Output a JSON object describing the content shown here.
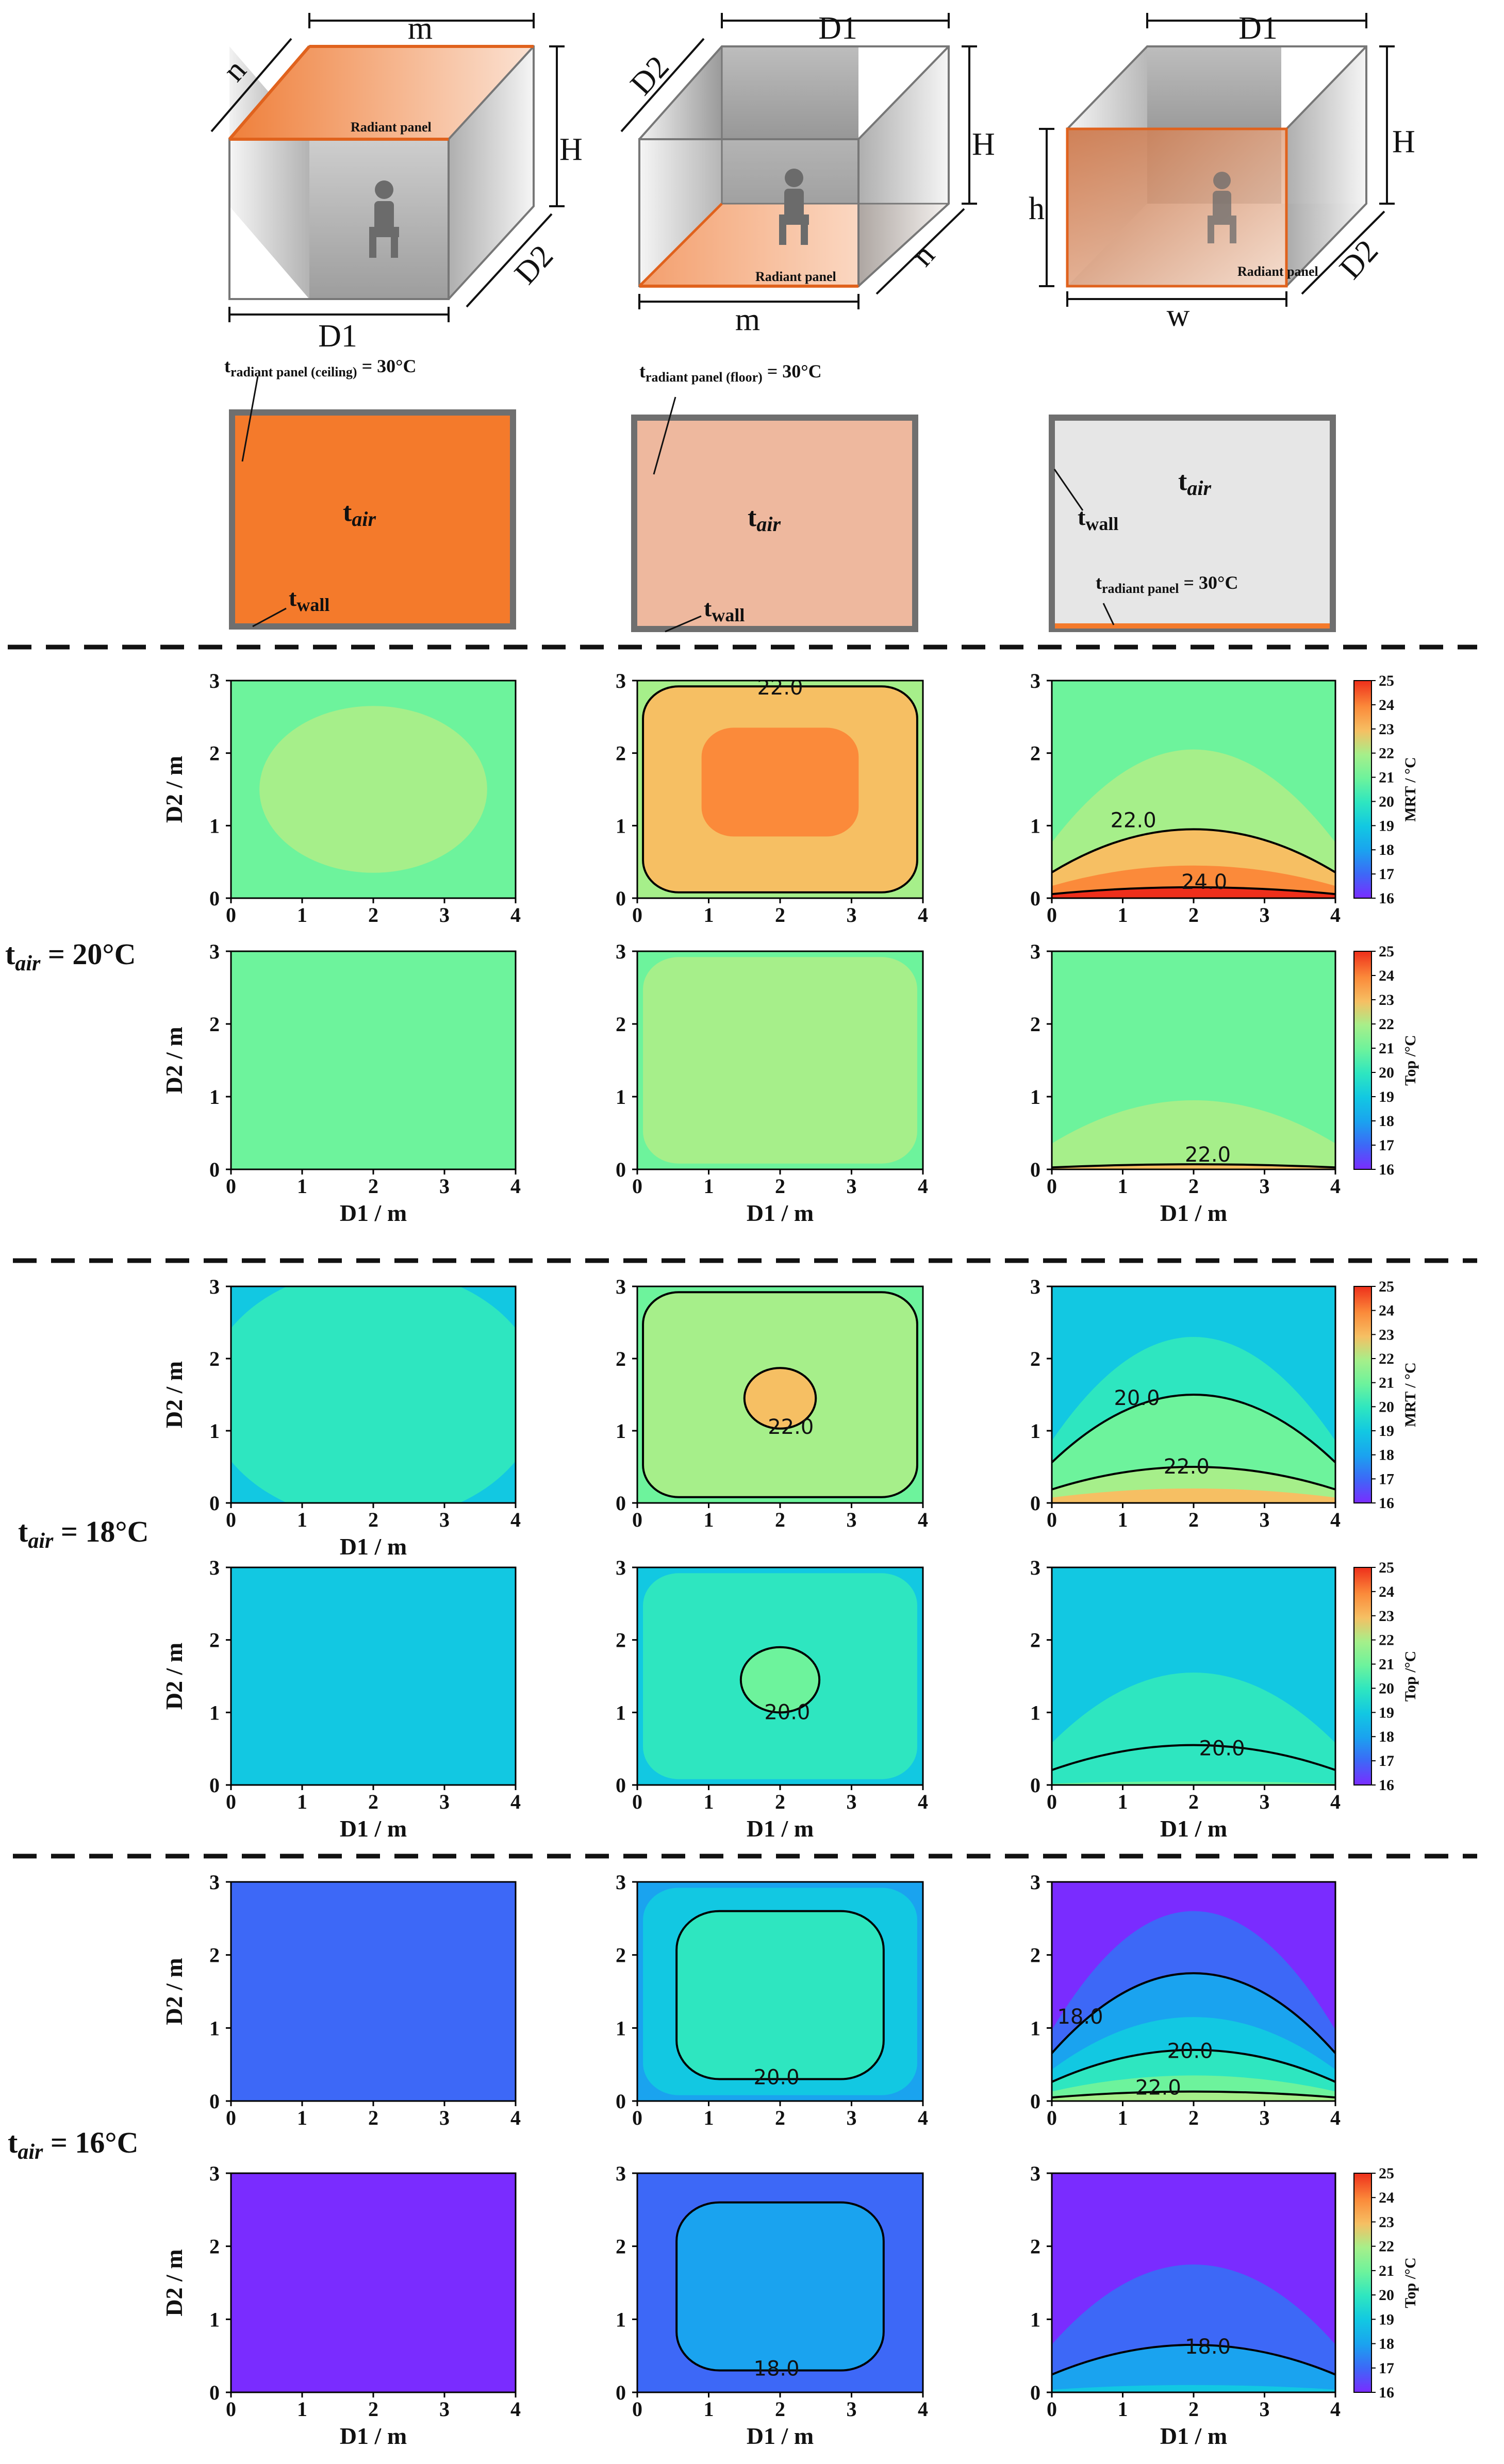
{
  "diagrams": {
    "cases": [
      {
        "name": "ceiling",
        "dims": {
          "top": "m",
          "depth": "n",
          "height": "H",
          "bottom": "D1",
          "side": "D2"
        },
        "panel_label": "Radiant panel",
        "section_panel_label": "t",
        "section_panel_sub": "radiant panel (ceiling)",
        "section_panel_value": " = 30°C",
        "tair_main": "t",
        "tair_sub": "air",
        "twall_main": "t",
        "twall_sub": "wall",
        "fill": "#f47a2b"
      },
      {
        "name": "floor",
        "dims": {
          "top": "D1",
          "depth": "D2",
          "height": "H",
          "bottom": "m",
          "side": "n"
        },
        "panel_label": "Radiant panel",
        "section_panel_label": "t",
        "section_panel_sub": "radiant panel (floor)",
        "section_panel_value": " = 30°C",
        "tair_main": "t",
        "tair_sub": "air",
        "twall_main": "t",
        "twall_sub": "wall",
        "fill": "#eeb89e"
      },
      {
        "name": "wall",
        "dims": {
          "top": "D1",
          "left": "h",
          "height": "H",
          "bottom": "w",
          "side": "D2"
        },
        "panel_label": "Radiant panel",
        "section_panel_label": "t",
        "section_panel_sub": "radiant panel",
        "section_panel_value": " = 30°C",
        "tair_main": "t",
        "tair_sub": "air",
        "twall_main": "t",
        "twall_sub": "wall",
        "fill": "#e6e6e6"
      }
    ]
  },
  "row_labels": [
    {
      "main": "t",
      "sub": "air",
      "value": " = 20°C"
    },
    {
      "main": "t",
      "sub": "air",
      "value": " = 18°C"
    },
    {
      "main": "t",
      "sub": "air",
      "value": " = 16°C"
    }
  ],
  "colorbars": [
    {
      "label": "MRT / °C",
      "ticks": [
        "16",
        "17",
        "18",
        "19",
        "20",
        "21",
        "22",
        "23",
        "24",
        "25"
      ]
    },
    {
      "label": "Top /°C",
      "ticks": [
        "16",
        "17",
        "18",
        "19",
        "20",
        "21",
        "22",
        "23",
        "24",
        "25"
      ]
    }
  ],
  "colormap": {
    "16": "#7a2cff",
    "17": "#3d68f7",
    "18": "#1aa3ef",
    "19": "#12c8e2",
    "20": "#2ee6c0",
    "21": "#6df39c",
    "22": "#a6ef8a",
    "23": "#f6bf63",
    "24": "#fb8a3a",
    "25": "#ee2f1b"
  },
  "chart_data": [
    {
      "type": "heatmap",
      "case": "ceiling",
      "tair": 20,
      "metric": "MRT",
      "xlabel": "",
      "ylabel": "D2 / m",
      "x_ticks": [
        "0",
        "1",
        "2",
        "3",
        "4"
      ],
      "y_ticks": [
        "0",
        "1",
        "2",
        "3"
      ],
      "xlim": [
        0,
        4
      ],
      "ylim": [
        0,
        3
      ],
      "background": 21,
      "regions": [
        {
          "shape": "ellipse",
          "cx": 2,
          "cy": 1.5,
          "rx": 1.6,
          "ry": 1.15,
          "level": 22
        }
      ],
      "contours": []
    },
    {
      "type": "heatmap",
      "case": "floor",
      "tair": 20,
      "metric": "MRT",
      "xlabel": "",
      "ylabel": "",
      "x_ticks": [
        "0",
        "1",
        "2",
        "3",
        "4"
      ],
      "y_ticks": [
        "0",
        "1",
        "2",
        "3"
      ],
      "xlim": [
        0,
        4
      ],
      "ylim": [
        0,
        3
      ],
      "background": 22,
      "regions": [
        {
          "shape": "rrect",
          "x0": 0.08,
          "x1": 3.92,
          "y0": 0.08,
          "y1": 2.92,
          "r": 0.5,
          "level": 23
        },
        {
          "shape": "rrect",
          "x0": 0.9,
          "x1": 3.1,
          "y0": 0.85,
          "y1": 2.35,
          "r": 0.45,
          "level": 24
        }
      ],
      "contours": [
        {
          "shape": "rrect",
          "x0": 0.08,
          "x1": 3.92,
          "y0": 0.08,
          "y1": 2.92,
          "r": 0.5,
          "label": "22.0",
          "lx": 2,
          "ly": 2.9
        }
      ]
    },
    {
      "type": "heatmap",
      "case": "wall",
      "tair": 20,
      "metric": "MRT",
      "xlabel": "",
      "ylabel": "",
      "x_ticks": [
        "0",
        "1",
        "2",
        "3",
        "4"
      ],
      "y_ticks": [
        "0",
        "1",
        "2",
        "3"
      ],
      "xlim": [
        0,
        4
      ],
      "ylim": [
        0,
        3
      ],
      "background": 21,
      "regions": [
        {
          "shape": "dome",
          "h": 2.05,
          "level": 22
        },
        {
          "shape": "dome",
          "h": 0.95,
          "level": 23
        },
        {
          "shape": "dome",
          "h": 0.45,
          "level": 24
        },
        {
          "shape": "dome",
          "h": 0.15,
          "level": 25
        }
      ],
      "contours": [
        {
          "shape": "dome",
          "h": 0.95,
          "label": "22.0",
          "lx": 1.15,
          "ly": 1.07
        },
        {
          "shape": "dome",
          "h": 0.15,
          "label": "24.0",
          "lx": 2.15,
          "ly": 0.22
        }
      ],
      "colorbar": 0
    },
    {
      "type": "heatmap",
      "case": "ceiling",
      "tair": 20,
      "metric": "Top",
      "xlabel": "D1 / m",
      "ylabel": "D2 / m",
      "x_ticks": [
        "0",
        "1",
        "2",
        "3",
        "4"
      ],
      "y_ticks": [
        "0",
        "1",
        "2",
        "3"
      ],
      "xlim": [
        0,
        4
      ],
      "ylim": [
        0,
        3
      ],
      "background": 21,
      "regions": [],
      "contours": []
    },
    {
      "type": "heatmap",
      "case": "floor",
      "tair": 20,
      "metric": "Top",
      "xlabel": "D1 / m",
      "ylabel": "",
      "x_ticks": [
        "0",
        "1",
        "2",
        "3",
        "4"
      ],
      "y_ticks": [
        "0",
        "1",
        "2",
        "3"
      ],
      "xlim": [
        0,
        4
      ],
      "ylim": [
        0,
        3
      ],
      "background": 21,
      "regions": [
        {
          "shape": "rrect",
          "x0": 0.08,
          "x1": 3.92,
          "y0": 0.08,
          "y1": 2.92,
          "r": 0.5,
          "level": 22
        }
      ],
      "contours": []
    },
    {
      "type": "heatmap",
      "case": "wall",
      "tair": 20,
      "metric": "Top",
      "xlabel": "D1 / m",
      "ylabel": "",
      "x_ticks": [
        "0",
        "1",
        "2",
        "3",
        "4"
      ],
      "y_ticks": [
        "0",
        "1",
        "2",
        "3"
      ],
      "xlim": [
        0,
        4
      ],
      "ylim": [
        0,
        3
      ],
      "background": 21,
      "regions": [
        {
          "shape": "dome",
          "h": 0.95,
          "level": 22
        },
        {
          "shape": "dome",
          "h": 0.07,
          "level": 23
        }
      ],
      "contours": [
        {
          "shape": "dome",
          "h": 0.07,
          "label": "22.0",
          "lx": 2.2,
          "ly": 0.2
        }
      ],
      "colorbar": 1
    },
    {
      "type": "heatmap",
      "case": "ceiling",
      "tair": 18,
      "metric": "MRT",
      "xlabel": "D1 / m",
      "ylabel": "D2 / m",
      "x_ticks": [
        "0",
        "1",
        "2",
        "3",
        "4"
      ],
      "y_ticks": [
        "0",
        "1",
        "2",
        "3"
      ],
      "xlim": [
        0,
        4
      ],
      "ylim": [
        0,
        3
      ],
      "background": 19,
      "regions": [
        {
          "shape": "ellipse",
          "cx": 2,
          "cy": 1.5,
          "rx": 2.35,
          "ry": 1.75,
          "level": 20
        }
      ],
      "contours": []
    },
    {
      "type": "heatmap",
      "case": "floor",
      "tair": 18,
      "metric": "MRT",
      "xlabel": "",
      "ylabel": "",
      "x_ticks": [
        "0",
        "1",
        "2",
        "3",
        "4"
      ],
      "y_ticks": [
        "0",
        "1",
        "2",
        "3"
      ],
      "xlim": [
        0,
        4
      ],
      "ylim": [
        0,
        3
      ],
      "background": 21,
      "regions": [
        {
          "shape": "rrect",
          "x0": 0.08,
          "x1": 3.92,
          "y0": 0.08,
          "y1": 2.92,
          "r": 0.5,
          "level": 22
        },
        {
          "shape": "rrect",
          "x0": 0.6,
          "x1": 3.4,
          "y0": 0.35,
          "y1": 2.65,
          "r": 0.5,
          "level": 22
        },
        {
          "shape": "ellipse",
          "cx": 2,
          "cy": 1.45,
          "rx": 0.5,
          "ry": 0.42,
          "level": 23
        }
      ],
      "contours": [
        {
          "shape": "rrect",
          "x0": 0.08,
          "x1": 3.92,
          "y0": 0.08,
          "y1": 2.92,
          "r": 0.5,
          "label": "",
          "lx": 0,
          "ly": 0
        },
        {
          "shape": "ellipse",
          "cx": 2,
          "cy": 1.45,
          "rx": 0.5,
          "ry": 0.42,
          "label": "22.0",
          "lx": 2.15,
          "ly": 1.05
        }
      ]
    },
    {
      "type": "heatmap",
      "case": "wall",
      "tair": 18,
      "metric": "MRT",
      "xlabel": "",
      "ylabel": "",
      "x_ticks": [
        "0",
        "1",
        "2",
        "3",
        "4"
      ],
      "y_ticks": [
        "0",
        "1",
        "2",
        "3"
      ],
      "xlim": [
        0,
        4
      ],
      "ylim": [
        0,
        3
      ],
      "background": 19,
      "regions": [
        {
          "shape": "dome",
          "h": 2.3,
          "level": 20
        },
        {
          "shape": "dome",
          "h": 1.5,
          "level": 21
        },
        {
          "shape": "dome",
          "h": 0.5,
          "level": 22
        },
        {
          "shape": "dome",
          "h": 0.2,
          "level": 23
        }
      ],
      "contours": [
        {
          "shape": "dome",
          "h": 1.5,
          "label": "20.0",
          "lx": 1.2,
          "ly": 1.45
        },
        {
          "shape": "dome",
          "h": 0.5,
          "label": "22.0",
          "lx": 1.9,
          "ly": 0.5
        }
      ],
      "colorbar": 0
    },
    {
      "type": "heatmap",
      "case": "ceiling",
      "tair": 18,
      "metric": "Top",
      "xlabel": "D1 / m",
      "ylabel": "D2 / m",
      "x_ticks": [
        "0",
        "1",
        "2",
        "3",
        "4"
      ],
      "y_ticks": [
        "0",
        "1",
        "2",
        "3"
      ],
      "xlim": [
        0,
        4
      ],
      "ylim": [
        0,
        3
      ],
      "background": 19,
      "regions": [],
      "contours": []
    },
    {
      "type": "heatmap",
      "case": "floor",
      "tair": 18,
      "metric": "Top",
      "xlabel": "D1 / m",
      "ylabel": "",
      "x_ticks": [
        "0",
        "1",
        "2",
        "3",
        "4"
      ],
      "y_ticks": [
        "0",
        "1",
        "2",
        "3"
      ],
      "xlim": [
        0,
        4
      ],
      "ylim": [
        0,
        3
      ],
      "background": 19,
      "regions": [
        {
          "shape": "rrect",
          "x0": 0.08,
          "x1": 3.92,
          "y0": 0.08,
          "y1": 2.92,
          "r": 0.5,
          "level": 20
        },
        {
          "shape": "ellipse",
          "cx": 2,
          "cy": 1.45,
          "rx": 0.55,
          "ry": 0.45,
          "level": 21
        }
      ],
      "contours": [
        {
          "shape": "ellipse",
          "cx": 2,
          "cy": 1.45,
          "rx": 0.55,
          "ry": 0.45,
          "label": "20.0",
          "lx": 2.1,
          "ly": 1.0
        }
      ]
    },
    {
      "type": "heatmap",
      "case": "wall",
      "tair": 18,
      "metric": "Top",
      "xlabel": "D1 / m",
      "ylabel": "",
      "x_ticks": [
        "0",
        "1",
        "2",
        "3",
        "4"
      ],
      "y_ticks": [
        "0",
        "1",
        "2",
        "3"
      ],
      "xlim": [
        0,
        4
      ],
      "ylim": [
        0,
        3
      ],
      "background": 19,
      "regions": [
        {
          "shape": "dome",
          "h": 1.55,
          "level": 20
        },
        {
          "shape": "dome",
          "h": 0.55,
          "level": 20.5
        },
        {
          "shape": "dome",
          "h": 0.05,
          "level": 21
        }
      ],
      "contours": [
        {
          "shape": "dome",
          "h": 0.55,
          "label": "20.0",
          "lx": 2.4,
          "ly": 0.5
        }
      ],
      "colorbar": 1
    },
    {
      "type": "heatmap",
      "case": "ceiling",
      "tair": 16,
      "metric": "MRT",
      "xlabel": "",
      "ylabel": "D2 / m",
      "x_ticks": [
        "0",
        "1",
        "2",
        "3",
        "4"
      ],
      "y_ticks": [
        "0",
        "1",
        "2",
        "3"
      ],
      "xlim": [
        0,
        4
      ],
      "ylim": [
        0,
        3
      ],
      "background": 17,
      "regions": [],
      "contours": []
    },
    {
      "type": "heatmap",
      "case": "floor",
      "tair": 16,
      "metric": "MRT",
      "xlabel": "",
      "ylabel": "",
      "x_ticks": [
        "0",
        "1",
        "2",
        "3",
        "4"
      ],
      "y_ticks": [
        "0",
        "1",
        "2",
        "3"
      ],
      "xlim": [
        0,
        4
      ],
      "ylim": [
        0,
        3
      ],
      "background": 18,
      "regions": [
        {
          "shape": "rrect",
          "x0": 0.08,
          "x1": 3.92,
          "y0": 0.08,
          "y1": 2.92,
          "r": 0.5,
          "level": 19
        },
        {
          "shape": "rrect",
          "x0": 0.55,
          "x1": 3.45,
          "y0": 0.3,
          "y1": 2.6,
          "r": 0.6,
          "level": 20
        }
      ],
      "contours": [
        {
          "shape": "rrect",
          "x0": 0.55,
          "x1": 3.45,
          "y0": 0.3,
          "y1": 2.6,
          "r": 0.6,
          "label": "20.0",
          "lx": 1.95,
          "ly": 0.32
        }
      ]
    },
    {
      "type": "heatmap",
      "case": "wall",
      "tair": 16,
      "metric": "MRT",
      "xlabel": "",
      "ylabel": "",
      "x_ticks": [
        "0",
        "1",
        "2",
        "3",
        "4"
      ],
      "y_ticks": [
        "0",
        "1",
        "2",
        "3"
      ],
      "xlim": [
        0,
        4
      ],
      "ylim": [
        0,
        3
      ],
      "background": 16,
      "regions": [
        {
          "shape": "dome",
          "h": 2.6,
          "level": 17
        },
        {
          "shape": "dome",
          "h": 1.75,
          "level": 18
        },
        {
          "shape": "dome",
          "h": 1.15,
          "level": 19
        },
        {
          "shape": "dome",
          "h": 0.7,
          "level": 20
        },
        {
          "shape": "dome",
          "h": 0.35,
          "level": 21
        },
        {
          "shape": "dome",
          "h": 0.13,
          "level": 22
        }
      ],
      "contours": [
        {
          "shape": "dome",
          "h": 1.75,
          "label": "18.0",
          "lx": 0.4,
          "ly": 1.15
        },
        {
          "shape": "dome",
          "h": 0.7,
          "label": "20.0",
          "lx": 1.95,
          "ly": 0.68
        },
        {
          "shape": "dome",
          "h": 0.13,
          "label": "22.0",
          "lx": 1.5,
          "ly": 0.18
        }
      ]
    },
    {
      "type": "heatmap",
      "case": "ceiling",
      "tair": 16,
      "metric": "Top",
      "xlabel": "D1 / m",
      "ylabel": "D2 / m",
      "x_ticks": [
        "0",
        "1",
        "2",
        "3",
        "4"
      ],
      "y_ticks": [
        "0",
        "1",
        "2",
        "3"
      ],
      "xlim": [
        0,
        4
      ],
      "ylim": [
        0,
        3
      ],
      "background": 16,
      "regions": [],
      "contours": []
    },
    {
      "type": "heatmap",
      "case": "floor",
      "tair": 16,
      "metric": "Top",
      "xlabel": "D1 / m",
      "ylabel": "",
      "x_ticks": [
        "0",
        "1",
        "2",
        "3",
        "4"
      ],
      "y_ticks": [
        "0",
        "1",
        "2",
        "3"
      ],
      "xlim": [
        0,
        4
      ],
      "ylim": [
        0,
        3
      ],
      "background": 17,
      "regions": [
        {
          "shape": "rrect",
          "x0": 0.55,
          "x1": 3.45,
          "y0": 0.3,
          "y1": 2.6,
          "r": 0.6,
          "level": 18
        }
      ],
      "contours": [
        {
          "shape": "rrect",
          "x0": 0.55,
          "x1": 3.45,
          "y0": 0.3,
          "y1": 2.6,
          "r": 0.6,
          "label": "18.0",
          "lx": 1.95,
          "ly": 0.32
        }
      ]
    },
    {
      "type": "heatmap",
      "case": "wall",
      "tair": 16,
      "metric": "Top",
      "xlabel": "D1 / m",
      "ylabel": "",
      "x_ticks": [
        "0",
        "1",
        "2",
        "3",
        "4"
      ],
      "y_ticks": [
        "0",
        "1",
        "2",
        "3"
      ],
      "xlim": [
        0,
        4
      ],
      "ylim": [
        0,
        3
      ],
      "background": 16,
      "regions": [
        {
          "shape": "dome",
          "h": 1.75,
          "level": 17
        },
        {
          "shape": "dome",
          "h": 0.65,
          "level": 18
        },
        {
          "shape": "dome",
          "h": 0.1,
          "level": 19
        }
      ],
      "contours": [
        {
          "shape": "dome",
          "h": 0.65,
          "label": "18.0",
          "lx": 2.2,
          "ly": 0.62
        }
      ],
      "colorbar": 1
    }
  ]
}
